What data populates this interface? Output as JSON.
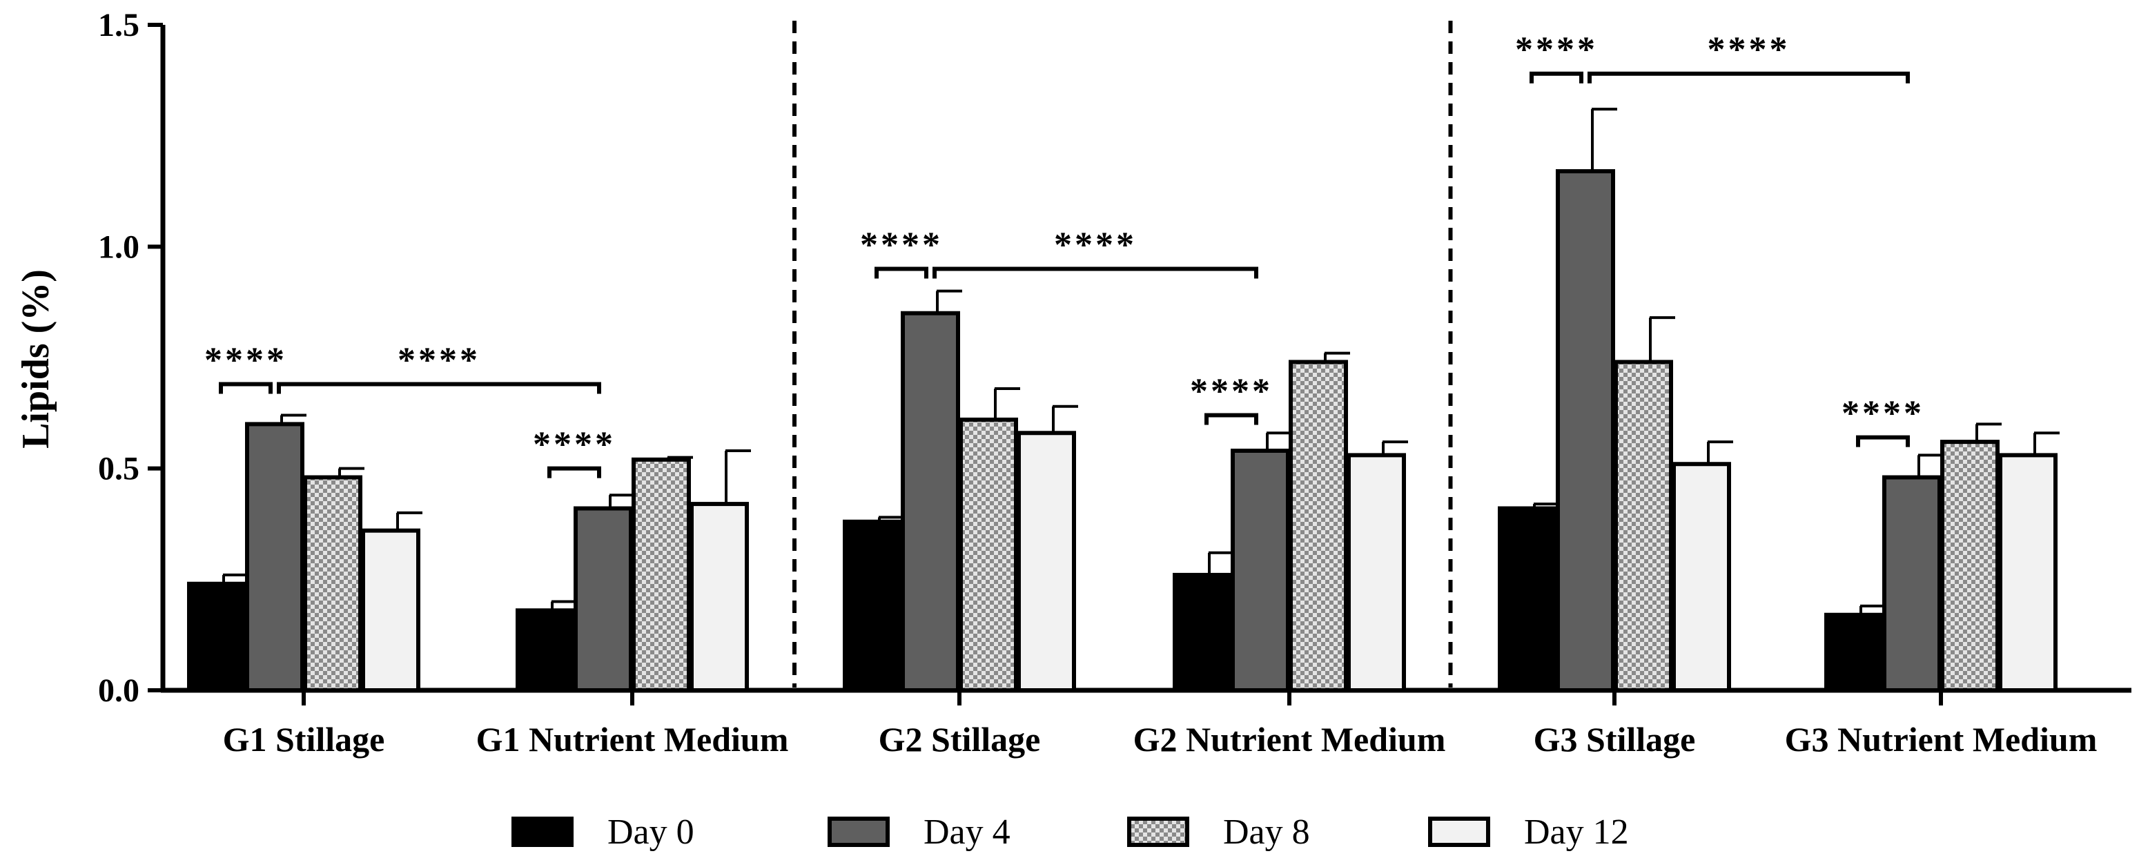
{
  "chart_data": {
    "type": "bar",
    "title": "",
    "xlabel": "",
    "ylabel": "Lipids (%)",
    "ylim": [
      0,
      1.5
    ],
    "yticks": [
      "0.0",
      "0.5",
      "1.0",
      "1.5"
    ],
    "categories": [
      "G1 Stillage",
      "G1 Nutrient Medium",
      "G2 Stillage",
      "G2 Nutrient Medium",
      "G3 Stillage",
      "G3 Nutrient Medium"
    ],
    "series": [
      {
        "name": "Day 0",
        "values": [
          0.24,
          0.18,
          0.38,
          0.26,
          0.41,
          0.17
        ],
        "errors": [
          0.02,
          0.02,
          0.01,
          0.05,
          0.01,
          0.02
        ],
        "fill": "#000000",
        "pattern": "solid"
      },
      {
        "name": "Day 4",
        "values": [
          0.6,
          0.41,
          0.85,
          0.54,
          1.17,
          0.48
        ],
        "errors": [
          0.02,
          0.03,
          0.05,
          0.04,
          0.14,
          0.05
        ],
        "fill": "#5f5f5f",
        "pattern": "solid"
      },
      {
        "name": "Day 8",
        "values": [
          0.48,
          0.52,
          0.61,
          0.74,
          0.74,
          0.56
        ],
        "errors": [
          0.02,
          0.005,
          0.07,
          0.02,
          0.1,
          0.04
        ],
        "fill": "#bdbdbd",
        "pattern": "checker"
      },
      {
        "name": "Day 12",
        "values": [
          0.36,
          0.42,
          0.58,
          0.53,
          0.51,
          0.53
        ],
        "errors": [
          0.04,
          0.12,
          0.06,
          0.03,
          0.05,
          0.05
        ],
        "fill": "#f2f2f2",
        "pattern": "solid"
      }
    ],
    "significance": [
      {
        "label": "****",
        "from": [
          0,
          0
        ],
        "to": [
          0,
          1
        ],
        "y": 0.69
      },
      {
        "label": "****",
        "from": [
          0,
          1
        ],
        "to": [
          1,
          1
        ],
        "y": 0.69
      },
      {
        "label": "****",
        "from": [
          1,
          0
        ],
        "to": [
          1,
          1
        ],
        "y": 0.5
      },
      {
        "label": "****",
        "from": [
          2,
          0
        ],
        "to": [
          2,
          1
        ],
        "y": 0.95
      },
      {
        "label": "****",
        "from": [
          2,
          1
        ],
        "to": [
          3,
          1
        ],
        "y": 0.95
      },
      {
        "label": "****",
        "from": [
          3,
          0
        ],
        "to": [
          3,
          1
        ],
        "y": 0.62
      },
      {
        "label": "****",
        "from": [
          4,
          0
        ],
        "to": [
          4,
          1
        ],
        "y": 1.39
      },
      {
        "label": "****",
        "from": [
          4,
          1
        ],
        "to": [
          5,
          1
        ],
        "y": 1.39
      },
      {
        "label": "****",
        "from": [
          5,
          0
        ],
        "to": [
          5,
          1
        ],
        "y": 0.57
      }
    ],
    "group_dividers": [
      1.5,
      3.5
    ],
    "legend_position": "bottom"
  }
}
